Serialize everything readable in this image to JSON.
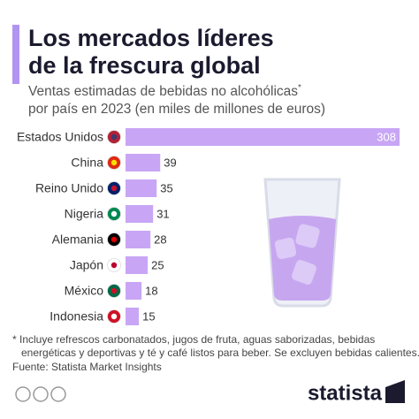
{
  "chart_data": {
    "type": "bar",
    "orientation": "horizontal",
    "title": [
      "Los mercados líderes",
      "de la frescura global"
    ],
    "subtitle": [
      "Ventas estimadas de bebidas no alcohólicas",
      "por país en 2023 (en miles de millones de euros)"
    ],
    "subtitle_mark": "*",
    "categories": [
      "Estados Unidos",
      "China",
      "Reino Unido",
      "Nigeria",
      "Alemania",
      "Japón",
      "México",
      "Indonesia"
    ],
    "values": [
      308,
      39,
      35,
      31,
      28,
      25,
      18,
      15
    ],
    "color": "#c8a6f5",
    "footnote": [
      "* Incluye refrescos carbonatados, jugos de fruta, aguas saborizadas, bebidas",
      "energéticas y deportivas y té y café listos para beber. Se excluyen bebidas calientes."
    ],
    "source": "Fuente: Statista Market Insights",
    "brand": "statista"
  }
}
